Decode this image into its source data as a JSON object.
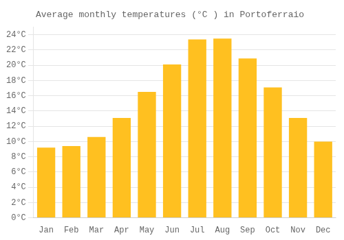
{
  "chart_data": {
    "type": "bar",
    "title": "Average monthly temperatures (°C ) in Portoferraio",
    "categories": [
      "Jan",
      "Feb",
      "Mar",
      "Apr",
      "May",
      "Jun",
      "Jul",
      "Aug",
      "Sep",
      "Oct",
      "Nov",
      "Dec"
    ],
    "values": [
      9.2,
      9.4,
      10.6,
      13.1,
      16.5,
      20.1,
      23.4,
      23.5,
      20.9,
      17.1,
      13.1,
      10.0
    ],
    "color": "#FFC020",
    "ylim": [
      0,
      25
    ],
    "yticks": [
      {
        "value": 0,
        "label": "0°C"
      },
      {
        "value": 2,
        "label": "2°C"
      },
      {
        "value": 4,
        "label": "4°C"
      },
      {
        "value": 6,
        "label": "6°C"
      },
      {
        "value": 8,
        "label": "8°C"
      },
      {
        "value": 10,
        "label": "10°C"
      },
      {
        "value": 12,
        "label": "12°C"
      },
      {
        "value": 14,
        "label": "14°C"
      },
      {
        "value": 16,
        "label": "16°C"
      },
      {
        "value": 18,
        "label": "18°C"
      },
      {
        "value": 20,
        "label": "20°C"
      },
      {
        "value": 22,
        "label": "22°C"
      },
      {
        "value": 24,
        "label": "24°C"
      }
    ],
    "grid": true
  }
}
